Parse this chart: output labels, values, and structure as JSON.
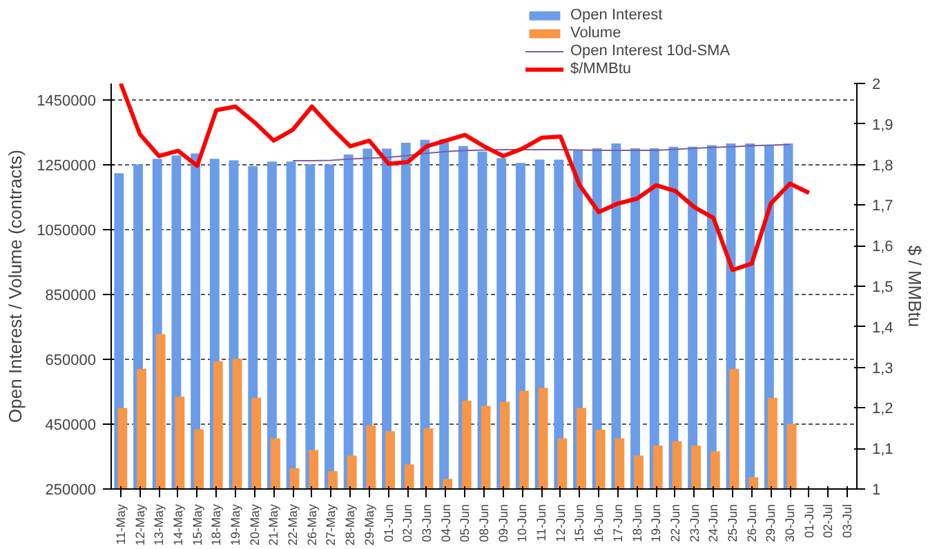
{
  "chart_data": {
    "type": "bar",
    "ylabel": "Open Interest / Volume (contracts)",
    "y2label": "$ / MMBtu",
    "categories": [
      "11-May",
      "12-May",
      "13-May",
      "14-May",
      "15-May",
      "18-May",
      "19-May",
      "20-May",
      "21-May",
      "22-May",
      "26-May",
      "27-May",
      "28-May",
      "29-May",
      "01-Jun",
      "02-Jun",
      "03-Jun",
      "04-Jun",
      "05-Jun",
      "08-Jun",
      "09-Jun",
      "10-Jun",
      "11-Jun",
      "12-Jun",
      "15-Jun",
      "16-Jun",
      "17-Jun",
      "18-Jun",
      "19-Jun",
      "22-Jun",
      "23-Jun",
      "24-Jun",
      "25-Jun",
      "26-Jun",
      "29-Jun",
      "30-Jun",
      "01-Jul",
      "02-Jul",
      "03-Jul"
    ],
    "series": [
      {
        "name": "Open Interest",
        "color": "#6a9ce8",
        "values": [
          1223000,
          1250000,
          1268000,
          1278000,
          1284000,
          1268000,
          1263000,
          1245000,
          1259000,
          1259000,
          1250000,
          1250000,
          1281000,
          1299000,
          1299000,
          1317000,
          1326000,
          1329000,
          1307000,
          1290000,
          1270000,
          1255000,
          1265000,
          1265000,
          1295000,
          1300000,
          1315000,
          1300000,
          1300000,
          1305000,
          1305000,
          1310000,
          1315000,
          1315000,
          1310000,
          1315000,
          null,
          null,
          null
        ]
      },
      {
        "name": "Volume",
        "color": "#f79646",
        "values": [
          500000,
          620000,
          727000,
          535000,
          434000,
          644000,
          651000,
          531000,
          406000,
          314000,
          370000,
          305000,
          353000,
          446000,
          428000,
          326000,
          437000,
          281000,
          522000,
          506000,
          519000,
          553000,
          562000,
          406000,
          500000,
          433000,
          406000,
          353000,
          384000,
          397000,
          384000,
          366000,
          620000,
          286000,
          531000,
          451000,
          null,
          null,
          null
        ]
      },
      {
        "name": "Open Interest 10d-SMA",
        "type": "line",
        "color": "#7b5ea7",
        "values": [
          null,
          null,
          null,
          null,
          null,
          null,
          null,
          null,
          null,
          1262000,
          1262000,
          1263000,
          1267000,
          1270000,
          1272000,
          1278000,
          1285000,
          1290000,
          1293000,
          1295000,
          1296000,
          1296000,
          1296000,
          1296000,
          1295000,
          1294000,
          1294000,
          1294000,
          1294000,
          1297000,
          1300000,
          1303000,
          1305000,
          1308000,
          1310000,
          1312000,
          null,
          null,
          null
        ]
      },
      {
        "name": "$/MMBtu",
        "type": "line",
        "axis": "y2",
        "color": "#ff0000",
        "values": [
          2.0,
          1.875,
          1.821,
          1.834,
          1.797,
          1.934,
          1.943,
          1.904,
          1.859,
          1.886,
          1.943,
          1.892,
          1.845,
          1.859,
          1.802,
          1.806,
          1.845,
          1.859,
          1.873,
          1.845,
          1.821,
          1.839,
          1.866,
          1.869,
          1.749,
          1.683,
          1.704,
          1.716,
          1.749,
          1.735,
          1.695,
          1.668,
          1.54,
          1.556,
          1.704,
          1.753,
          1.73,
          null,
          null
        ]
      }
    ],
    "ylim": [
      250000,
      1500000
    ],
    "yticks": [
      250000,
      450000,
      650000,
      850000,
      1050000,
      1250000,
      1450000
    ],
    "y2lim": [
      1,
      2
    ],
    "y2ticks": [
      1,
      {
        "value": 1.1,
        "label": "1,1"
      },
      {
        "value": 1.2,
        "label": "1,2"
      },
      {
        "value": 1.3,
        "label": "1,3"
      },
      {
        "value": 1.4,
        "label": "1,4"
      },
      {
        "value": 1.5,
        "label": "1,5"
      },
      {
        "value": 1.6,
        "label": "1,6"
      },
      {
        "value": 1.7,
        "label": "1,7"
      },
      {
        "value": 1.8,
        "label": "1,8"
      },
      {
        "value": 1.9,
        "label": "1,9"
      },
      2
    ],
    "grid": "y",
    "legend": "top"
  }
}
